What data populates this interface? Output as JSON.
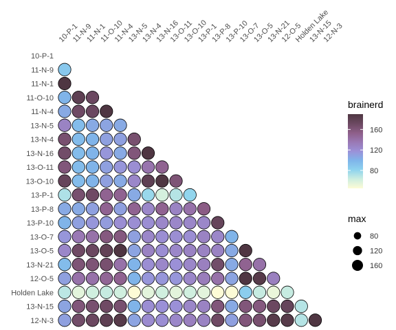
{
  "chart_data": {
    "type": "scatter",
    "subtype": "correlation-matrix-bubble",
    "title": "",
    "xlabel": "",
    "ylabel": "",
    "grid": false,
    "labels": [
      "10-P-1",
      "11-N-9",
      "11-N-1",
      "11-O-10",
      "11-N-4",
      "13-N-5",
      "13-N-4",
      "13-N-16",
      "13-O-11",
      "13-O-10",
      "13-P-1",
      "13-P-8",
      "13-P-10",
      "13-O-7",
      "13-O-5",
      "13-N-21",
      "12-O-5",
      "Holden Lake",
      "13-N-15",
      "12-N-3"
    ],
    "color_legend": {
      "title": "brainerd",
      "ticks": [
        80,
        120,
        160
      ],
      "range": [
        45,
        190
      ],
      "colors": [
        "#FDFBD6",
        "#CDEEE0",
        "#8ED3EE",
        "#7FB5EA",
        "#9B91D8",
        "#9A78B4",
        "#8D5E88",
        "#6B4860",
        "#4F3642"
      ]
    },
    "size_legend": {
      "title": "max",
      "ticks": [
        80,
        120,
        160
      ],
      "range": [
        40,
        190
      ]
    },
    "lower_triangle": [
      [],
      [
        88
      ],
      [
        195
      ],
      [
        100,
        180,
        172
      ],
      [
        105,
        170,
        172,
        195
      ],
      [
        128,
        95,
        105,
        108,
        105
      ],
      [
        165,
        95,
        100,
        110,
        110,
        165
      ],
      [
        168,
        95,
        100,
        115,
        105,
        160,
        195
      ],
      [
        160,
        95,
        100,
        110,
        115,
        120,
        138,
        150
      ],
      [
        175,
        95,
        100,
        110,
        105,
        125,
        180,
        195,
        162
      ],
      [
        72,
        165,
        170,
        150,
        150,
        105,
        78,
        60,
        70,
        80
      ],
      [
        105,
        105,
        110,
        150,
        110,
        150,
        125,
        150,
        128,
        140,
        155
      ],
      [
        100,
        110,
        115,
        112,
        120,
        120,
        120,
        125,
        125,
        125,
        125,
        175
      ],
      [
        115,
        135,
        140,
        158,
        158,
        110,
        125,
        120,
        120,
        120,
        128,
        125,
        100
      ],
      [
        125,
        170,
        172,
        178,
        195,
        108,
        128,
        120,
        125,
        128,
        128,
        128,
        105,
        195
      ],
      [
        95,
        162,
        162,
        165,
        140,
        100,
        120,
        125,
        118,
        125,
        130,
        168,
        105,
        150,
        140
      ],
      [
        110,
        140,
        140,
        148,
        150,
        100,
        115,
        115,
        115,
        125,
        132,
        140,
        108,
        198,
        185,
        130
      ],
      [
        68,
        55,
        62,
        65,
        62,
        45,
        55,
        62,
        55,
        62,
        55,
        42,
        45,
        85,
        65,
        52,
        65
      ],
      [
        108,
        160,
        165,
        170,
        165,
        100,
        120,
        118,
        118,
        125,
        128,
        160,
        105,
        160,
        158,
        172,
        175,
        70
      ],
      [
        110,
        168,
        172,
        180,
        185,
        108,
        122,
        120,
        125,
        130,
        128,
        170,
        110,
        160,
        165,
        185,
        185,
        70,
        190
      ]
    ]
  }
}
